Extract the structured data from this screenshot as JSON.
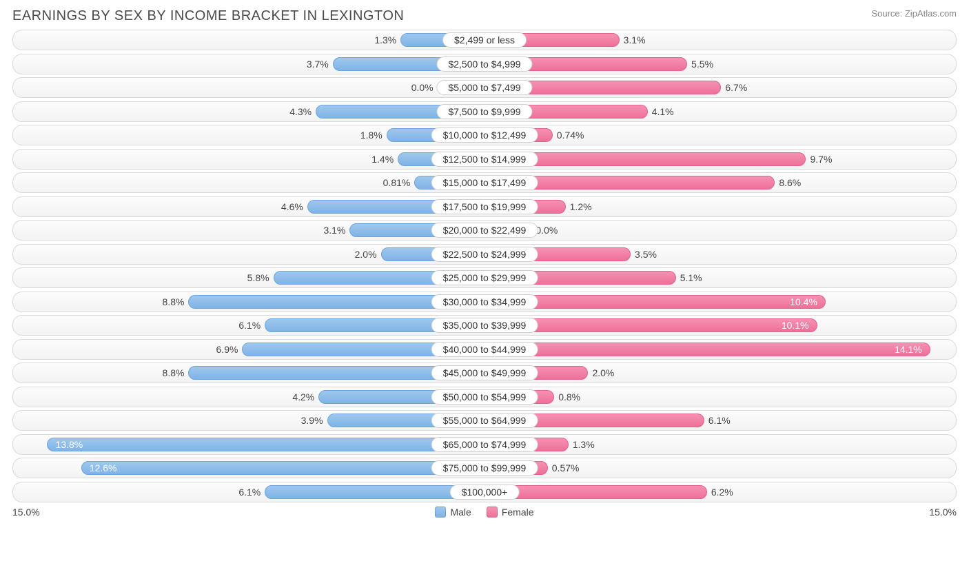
{
  "title": "EARNINGS BY SEX BY INCOME BRACKET IN LEXINGTON",
  "source": "Source: ZipAtlas.com",
  "axis_max": 15.0,
  "axis_label_left": "15.0%",
  "axis_label_right": "15.0%",
  "colors": {
    "male_top": "#9ec8ee",
    "male_bottom": "#7fb3e6",
    "male_border": "#6fa4dc",
    "female_top": "#f592b3",
    "female_bottom": "#ef6f98",
    "female_border": "#e85f8b",
    "row_border": "#d9d9d9",
    "row_bg_top": "#fcfcfc",
    "row_bg_bottom": "#f3f3f3",
    "text": "#444444",
    "title_text": "#4a4a4a",
    "source_text": "#888888",
    "label_border": "#d0d0d0",
    "background": "#ffffff"
  },
  "legend": {
    "male": "Male",
    "female": "Female"
  },
  "label_half_width_pct": 10,
  "inside_threshold": 10.0,
  "rows": [
    {
      "label": "$2,499 or less",
      "male": 1.3,
      "male_txt": "1.3%",
      "female": 3.1,
      "female_txt": "3.1%"
    },
    {
      "label": "$2,500 to $4,999",
      "male": 3.7,
      "male_txt": "3.7%",
      "female": 5.5,
      "female_txt": "5.5%"
    },
    {
      "label": "$5,000 to $7,499",
      "male": 0.0,
      "male_txt": "0.0%",
      "female": 6.7,
      "female_txt": "6.7%"
    },
    {
      "label": "$7,500 to $9,999",
      "male": 4.3,
      "male_txt": "4.3%",
      "female": 4.1,
      "female_txt": "4.1%"
    },
    {
      "label": "$10,000 to $12,499",
      "male": 1.8,
      "male_txt": "1.8%",
      "female": 0.74,
      "female_txt": "0.74%"
    },
    {
      "label": "$12,500 to $14,999",
      "male": 1.4,
      "male_txt": "1.4%",
      "female": 9.7,
      "female_txt": "9.7%"
    },
    {
      "label": "$15,000 to $17,499",
      "male": 0.81,
      "male_txt": "0.81%",
      "female": 8.6,
      "female_txt": "8.6%"
    },
    {
      "label": "$17,500 to $19,999",
      "male": 4.6,
      "male_txt": "4.6%",
      "female": 1.2,
      "female_txt": "1.2%"
    },
    {
      "label": "$20,000 to $22,499",
      "male": 3.1,
      "male_txt": "3.1%",
      "female": 0.0,
      "female_txt": "0.0%"
    },
    {
      "label": "$22,500 to $24,999",
      "male": 2.0,
      "male_txt": "2.0%",
      "female": 3.5,
      "female_txt": "3.5%"
    },
    {
      "label": "$25,000 to $29,999",
      "male": 5.8,
      "male_txt": "5.8%",
      "female": 5.1,
      "female_txt": "5.1%"
    },
    {
      "label": "$30,000 to $34,999",
      "male": 8.8,
      "male_txt": "8.8%",
      "female": 10.4,
      "female_txt": "10.4%"
    },
    {
      "label": "$35,000 to $39,999",
      "male": 6.1,
      "male_txt": "6.1%",
      "female": 10.1,
      "female_txt": "10.1%"
    },
    {
      "label": "$40,000 to $44,999",
      "male": 6.9,
      "male_txt": "6.9%",
      "female": 14.1,
      "female_txt": "14.1%"
    },
    {
      "label": "$45,000 to $49,999",
      "male": 8.8,
      "male_txt": "8.8%",
      "female": 2.0,
      "female_txt": "2.0%"
    },
    {
      "label": "$50,000 to $54,999",
      "male": 4.2,
      "male_txt": "4.2%",
      "female": 0.8,
      "female_txt": "0.8%"
    },
    {
      "label": "$55,000 to $64,999",
      "male": 3.9,
      "male_txt": "3.9%",
      "female": 6.1,
      "female_txt": "6.1%"
    },
    {
      "label": "$65,000 to $74,999",
      "male": 13.8,
      "male_txt": "13.8%",
      "female": 1.3,
      "female_txt": "1.3%"
    },
    {
      "label": "$75,000 to $99,999",
      "male": 12.6,
      "male_txt": "12.6%",
      "female": 0.57,
      "female_txt": "0.57%"
    },
    {
      "label": "$100,000+",
      "male": 6.1,
      "male_txt": "6.1%",
      "female": 6.2,
      "female_txt": "6.2%"
    }
  ]
}
